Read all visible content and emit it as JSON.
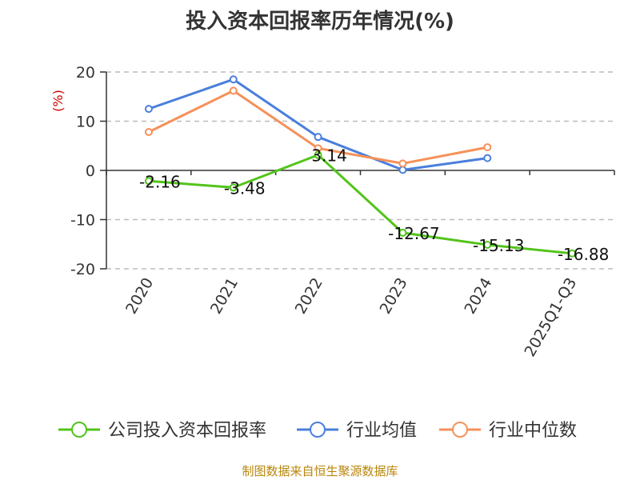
{
  "chart_data": {
    "type": "line",
    "title": "投入资本回报率历年情况(%)",
    "ylabel": "(%)",
    "xlabel": "",
    "ylim": [
      -20,
      20
    ],
    "yticks": [
      20,
      10,
      0,
      -10,
      -20
    ],
    "categories": [
      "2020",
      "2021",
      "2022",
      "2023",
      "2024",
      "2025Q1-Q3"
    ],
    "series": [
      {
        "name": "公司投入资本回报率",
        "color": "#52c41a",
        "values": [
          -2.16,
          -3.48,
          3.14,
          -12.67,
          -15.13,
          -16.88
        ],
        "labels": [
          "-2.16",
          "-3.48",
          "3.14",
          "-12.67",
          "-15.13",
          "-16.88"
        ]
      },
      {
        "name": "行业均值",
        "color": "#4a7fdc",
        "values": [
          12.5,
          18.5,
          6.8,
          0.1,
          2.5,
          null
        ]
      },
      {
        "name": "行业中位数",
        "color": "#f5915a",
        "values": [
          7.8,
          16.2,
          4.5,
          1.4,
          4.7,
          null
        ]
      }
    ]
  },
  "source": "制图数据来自恒生聚源数据库"
}
